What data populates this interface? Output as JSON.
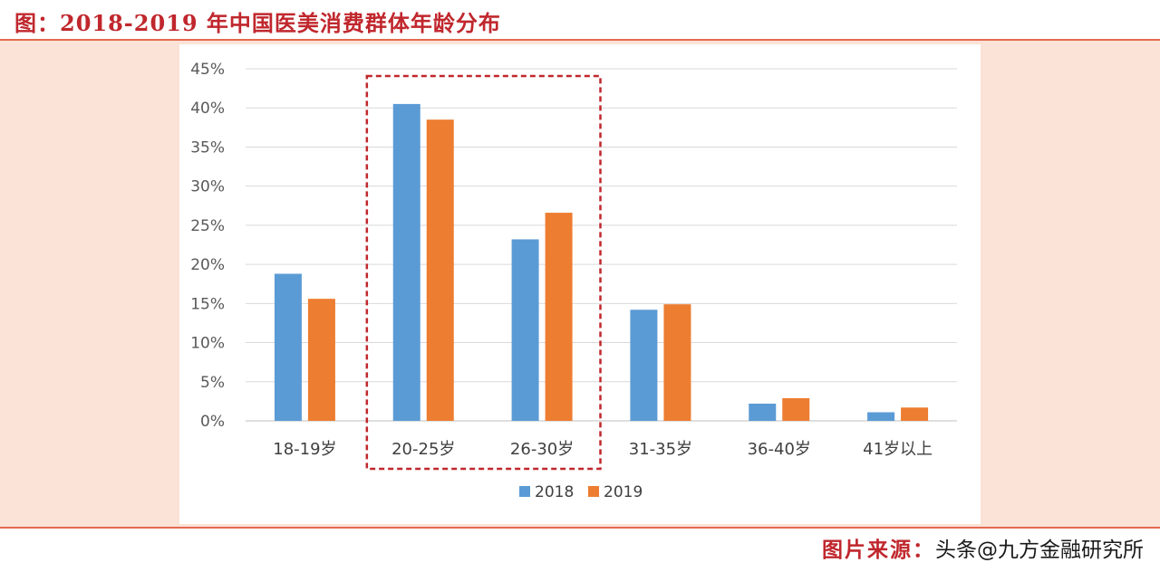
{
  "header": {
    "title": "图：2018-2019 年中国医美消费群体年龄分布"
  },
  "footer": {
    "source_label": "图片来源：",
    "source_name": "头条@九方金融研究所"
  },
  "colors": {
    "series_2018": "#5b9bd5",
    "series_2019": "#ed7d31",
    "highlight": "#c0272d"
  },
  "chart_data": {
    "type": "bar",
    "categories": [
      "18-19岁",
      "20-25岁",
      "26-30岁",
      "31-35岁",
      "36-40岁",
      "41岁以上"
    ],
    "series": [
      {
        "name": "2018",
        "values": [
          18.8,
          40.5,
          23.2,
          14.2,
          2.2,
          1.1
        ]
      },
      {
        "name": "2019",
        "values": [
          15.6,
          38.5,
          26.6,
          14.9,
          2.9,
          1.7
        ]
      }
    ],
    "y_ticks": [
      "0%",
      "5%",
      "10%",
      "15%",
      "20%",
      "25%",
      "30%",
      "35%",
      "40%",
      "45%"
    ],
    "ylim": [
      0,
      45
    ],
    "grid": true,
    "legend_position": "bottom",
    "highlighted_categories": [
      "20-25岁",
      "26-30岁"
    ]
  }
}
